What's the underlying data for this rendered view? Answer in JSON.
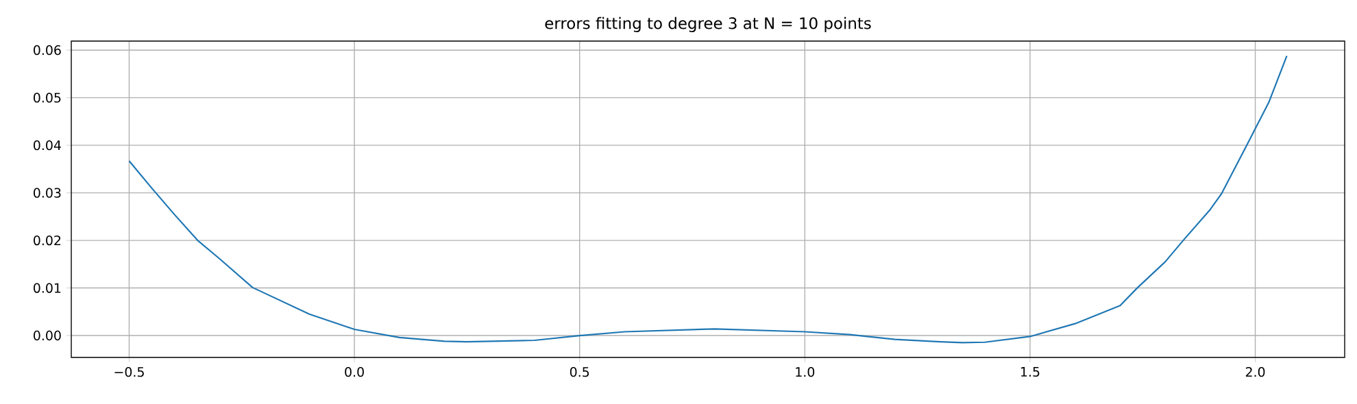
{
  "chart_data": {
    "type": "line",
    "title": "errors fitting to degree 3 at N = 10 points",
    "x": [
      -0.5,
      -0.45,
      -0.4,
      -0.348,
      -0.3,
      -0.226,
      -0.1,
      0.0,
      0.1,
      0.2,
      0.25,
      0.4,
      0.5,
      0.6,
      0.8,
      1.0,
      1.1,
      1.2,
      1.3,
      1.35,
      1.4,
      1.5,
      1.6,
      1.7,
      1.739,
      1.8,
      1.84,
      1.9,
      1.925,
      1.98,
      2.03,
      2.07
    ],
    "series": [
      {
        "color": "#1f77b4",
        "values": [
          0.0367,
          0.031,
          0.0255,
          0.02,
          0.0162,
          0.0101,
          0.0045,
          0.0013,
          -0.0004,
          -0.0012,
          -0.0013,
          -0.001,
          0.0,
          0.0008,
          0.0014,
          0.0008,
          0.0002,
          -0.0008,
          -0.0013,
          -0.0015,
          -0.0014,
          -0.0002,
          0.0025,
          0.0063,
          0.0101,
          0.0155,
          0.02,
          0.0265,
          0.0298,
          0.0398,
          0.049,
          0.0588
        ]
      }
    ],
    "xlim": [
      -0.6285,
      2.1985
    ],
    "ylim": [
      -0.0046,
      0.0619
    ],
    "xticks": [
      {
        "value": -0.5,
        "label": "−0.5"
      },
      {
        "value": 0.0,
        "label": "0.0"
      },
      {
        "value": 0.5,
        "label": "0.5"
      },
      {
        "value": 1.0,
        "label": "1.0"
      },
      {
        "value": 1.5,
        "label": "1.5"
      },
      {
        "value": 2.0,
        "label": "2.0"
      }
    ],
    "yticks": [
      {
        "value": 0.0,
        "label": "0.00"
      },
      {
        "value": 0.01,
        "label": "0.01"
      },
      {
        "value": 0.02,
        "label": "0.02"
      },
      {
        "value": 0.03,
        "label": "0.03"
      },
      {
        "value": 0.04,
        "label": "0.04"
      },
      {
        "value": 0.05,
        "label": "0.05"
      },
      {
        "value": 0.06,
        "label": "0.06"
      }
    ],
    "grid": true,
    "line_style": "solid"
  }
}
